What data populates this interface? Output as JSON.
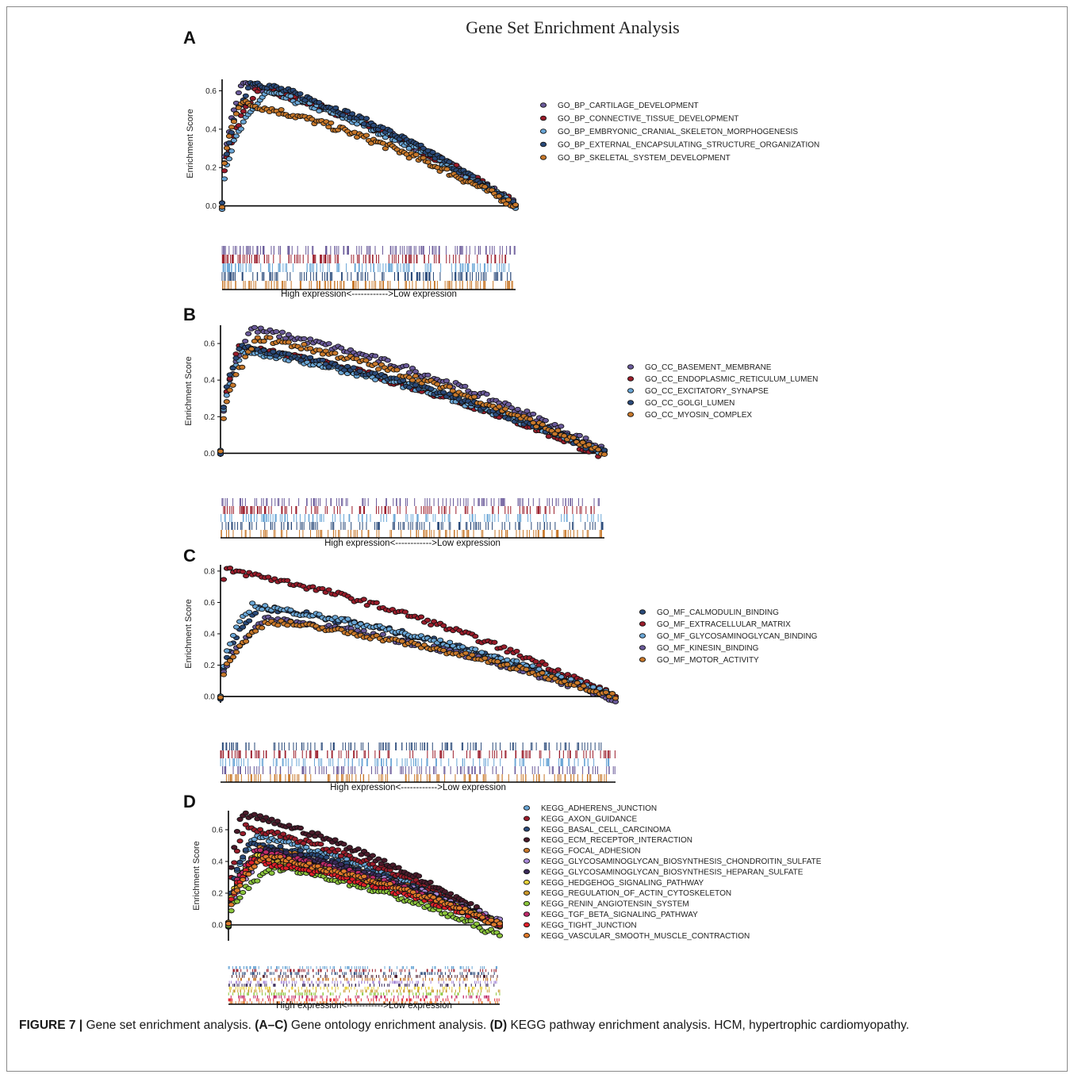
{
  "figure_title": "Gene Set Enrichment Analysis",
  "colors": {
    "cc_purple": "#6a5a9a",
    "cc_red": "#9a1c2a",
    "cc_lightblue": "#6aa6d6",
    "cc_navy": "#2a4a7a",
    "cc_orange": "#c8782a",
    "yellow": "#e8d23a",
    "green": "#8cc63c",
    "lavender": "#a88ad8",
    "bright_red": "#e0202a",
    "magenta": "#c02a6a"
  },
  "caption": {
    "label": "FIGURE 7 |",
    "part1": " Gene set enrichment analysis. ",
    "bold1": "(A–C)",
    "part2": " Gene ontology enrichment analysis. ",
    "bold2": "(D)",
    "part3": " KEGG pathway enrichment analysis. HCM, hypertrophic cardiomyopathy."
  },
  "chart_data": [
    {
      "panel": "A",
      "type": "scatter",
      "ylabel": "Enrichment Score",
      "yticks": [
        "0.0",
        "0.2",
        "0.4",
        "0.6"
      ],
      "ylim": [
        -0.01,
        0.66
      ],
      "rank_label": "High expression<------------>Low expression",
      "series": [
        {
          "name": "GO_BP_CARTILAGE_DEVELOPMENT",
          "color": "#6a5a9a",
          "peak": 0.64,
          "peak_at": 0.07,
          "end": 0.01
        },
        {
          "name": "GO_BP_CONNECTIVE_TISSUE_DEVELOPMENT",
          "color": "#9a1c2a",
          "peak": 0.61,
          "peak_at": 0.12,
          "end": 0.01
        },
        {
          "name": "GO_BP_EMBRYONIC_CRANIAL_SKELETON_MORPHOGENESIS",
          "color": "#6aa6d6",
          "peak": 0.59,
          "peak_at": 0.15,
          "end": 0.0
        },
        {
          "name": "GO_BP_EXTERNAL_ENCAPSULATING_STRUCTURE_ORGANIZATION",
          "color": "#2a4a7a",
          "peak": 0.65,
          "peak_at": 0.1,
          "end": 0.0
        },
        {
          "name": "GO_BP_SKELETAL_SYSTEM_DEVELOPMENT",
          "color": "#c8782a",
          "peak": 0.54,
          "peak_at": 0.06,
          "end": 0.0
        }
      ]
    },
    {
      "panel": "B",
      "type": "scatter",
      "ylabel": "Enrichment Score",
      "yticks": [
        "0.0",
        "0.2",
        "0.4",
        "0.6"
      ],
      "ylim": [
        -0.02,
        0.7
      ],
      "rank_label": "High expression<------------>Low expression",
      "series": [
        {
          "name": "GO_CC_BASEMENT_MEMBRANE",
          "color": "#6a5a9a",
          "peak": 0.68,
          "peak_at": 0.08,
          "end": 0.02
        },
        {
          "name": "GO_CC_ENDOPLASMIC_RETICULUM_LUMEN",
          "color": "#9a1c2a",
          "peak": 0.58,
          "peak_at": 0.05,
          "end": -0.02
        },
        {
          "name": "GO_CC_EXCITATORY_SYNAPSE",
          "color": "#6aa6d6",
          "peak": 0.56,
          "peak_at": 0.06,
          "end": 0.0
        },
        {
          "name": "GO_CC_GOLGI_LUMEN",
          "color": "#2a4a7a",
          "peak": 0.58,
          "peak_at": 0.05,
          "end": 0.0
        },
        {
          "name": "GO_CC_MYOSIN_COMPLEX",
          "color": "#c8782a",
          "peak": 0.63,
          "peak_at": 0.1,
          "end": -0.01
        }
      ]
    },
    {
      "panel": "C",
      "type": "scatter",
      "ylabel": "Enrichment Score",
      "yticks": [
        "0.0",
        "0.2",
        "0.4",
        "0.6",
        "0.8"
      ],
      "ylim": [
        -0.04,
        0.84
      ],
      "rank_label": "High expression<------------>Low expression",
      "series": [
        {
          "name": "GO_MF_CALMODULIN_BINDING",
          "color": "#2a4a7a",
          "peak": 0.57,
          "peak_at": 0.1,
          "end": 0.0
        },
        {
          "name": "GO_MF_EXTRACELLULAR_MATRIX",
          "color": "#9a1c2a",
          "peak": 0.81,
          "peak_at": 0.01,
          "end": 0.0
        },
        {
          "name": "GO_MF_GLYCOSAMINOGLYCAN_BINDING",
          "color": "#6aa6d6",
          "peak": 0.58,
          "peak_at": 0.08,
          "end": 0.0
        },
        {
          "name": "GO_MF_KINESIN_BINDING",
          "color": "#6a5a9a",
          "peak": 0.5,
          "peak_at": 0.12,
          "end": -0.02
        },
        {
          "name": "GO_MF_MOTOR_ACTIVITY",
          "color": "#c8782a",
          "peak": 0.48,
          "peak_at": 0.12,
          "end": 0.0
        }
      ]
    },
    {
      "panel": "D",
      "type": "scatter",
      "ylabel": "Enrichment Score",
      "yticks": [
        "0.0",
        "0.2",
        "0.4",
        "0.6"
      ],
      "ylim": [
        -0.1,
        0.72
      ],
      "rank_label": "High expression<------------>Low expression",
      "series": [
        {
          "name": "KEGG_ADHERENS_JUNCTION",
          "color": "#6aa6d6",
          "peak": 0.56,
          "peak_at": 0.1,
          "end": 0.0
        },
        {
          "name": "KEGG_AXON_GUIDANCE",
          "color": "#9a1c2a",
          "peak": 0.62,
          "peak_at": 0.06,
          "end": 0.0
        },
        {
          "name": "KEGG_BASAL_CELL_CARCINOMA",
          "color": "#2a4a7a",
          "peak": 0.52,
          "peak_at": 0.08,
          "end": 0.0
        },
        {
          "name": "KEGG_ECM_RECEPTOR_INTERACTION",
          "color": "#4a1a2a",
          "peak": 0.7,
          "peak_at": 0.05,
          "end": 0.01
        },
        {
          "name": "KEGG_FOCAL_ADHESION",
          "color": "#c8782a",
          "peak": 0.48,
          "peak_at": 0.12,
          "end": 0.0
        },
        {
          "name": "KEGG_GLYCOSAMINOGLYCAN_BIOSYNTHESIS_CHONDROITIN_SULFATE",
          "color": "#a88ad8",
          "peak": 0.45,
          "peak_at": 0.15,
          "end": 0.02
        },
        {
          "name": "KEGG_GLYCOSAMINOGLYCAN_BIOSYNTHESIS_HEPARAN_SULFATE",
          "color": "#3a2a5a",
          "peak": 0.47,
          "peak_at": 0.14,
          "end": 0.0
        },
        {
          "name": "KEGG_HEDGEHOG_SIGNALING_PATHWAY",
          "color": "#e8d23a",
          "peak": 0.44,
          "peak_at": 0.1,
          "end": 0.0
        },
        {
          "name": "KEGG_REGULATION_OF_ACTIN_CYTOSKELETON",
          "color": "#c8962a",
          "peak": 0.42,
          "peak_at": 0.12,
          "end": 0.0
        },
        {
          "name": "KEGG_RENIN_ANGIOTENSIN_SYSTEM",
          "color": "#8cc63c",
          "peak": 0.36,
          "peak_at": 0.18,
          "end": -0.07
        },
        {
          "name": "KEGG_TGF_BETA_SIGNALING_PATHWAY",
          "color": "#c02a6a",
          "peak": 0.46,
          "peak_at": 0.1,
          "end": 0.0
        },
        {
          "name": "KEGG_TIGHT_JUNCTION",
          "color": "#e0202a",
          "peak": 0.4,
          "peak_at": 0.09,
          "end": 0.0
        },
        {
          "name": "KEGG_VASCULAR_SMOOTH_MUSCLE_CONTRACTION",
          "color": "#e07a2a",
          "peak": 0.43,
          "peak_at": 0.13,
          "end": 0.0
        }
      ]
    }
  ]
}
